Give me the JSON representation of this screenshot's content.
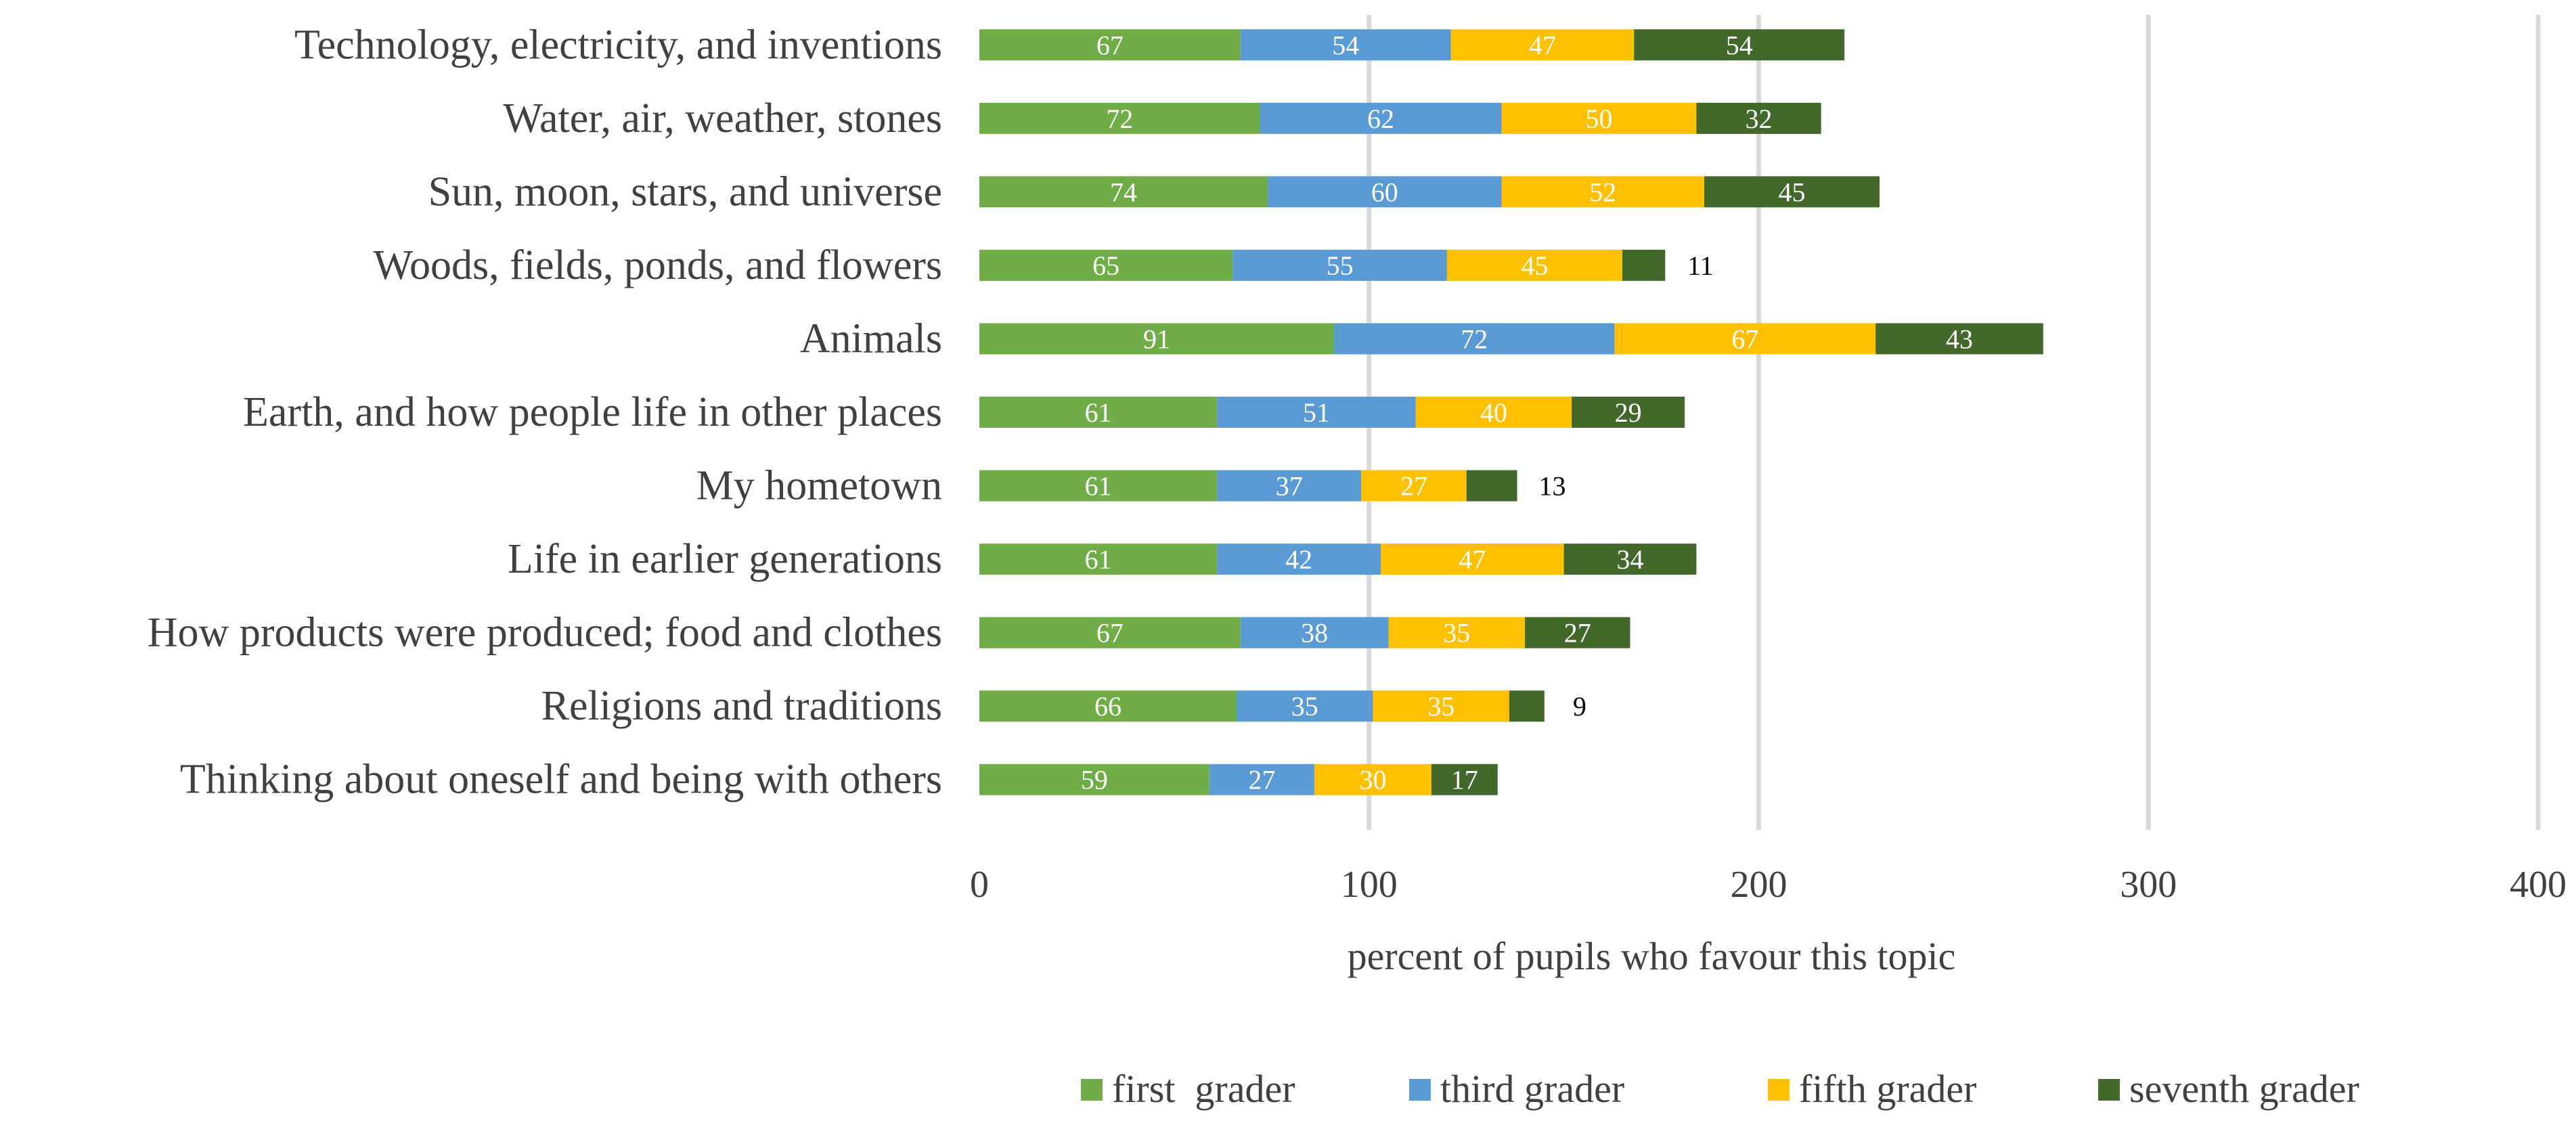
{
  "chart_data": {
    "type": "bar",
    "orientation": "horizontal",
    "stacked": true,
    "title": "",
    "xlabel": "percent of pupils who favour this topic",
    "ylabel": "",
    "xlim": [
      0,
      400
    ],
    "xticks": [
      0,
      100,
      200,
      300,
      400
    ],
    "grid": true,
    "legend_position": "bottom",
    "categories": [
      "Technology, electricity, and inventions",
      "Water, air, weather, stones",
      "Sun, moon, stars, and universe",
      "Woods, fields, ponds, and flowers",
      "Animals",
      "Earth, and how people life in other places",
      "My hometown",
      "Life in earlier generations",
      "How products were produced; food and clothes",
      "Religions and traditions",
      "Thinking about oneself and being  with others"
    ],
    "series": [
      {
        "name": "first  grader",
        "color": "#70ad47",
        "values": [
          67,
          72,
          74,
          65,
          91,
          61,
          61,
          61,
          67,
          66,
          59
        ]
      },
      {
        "name": "third grader",
        "color": "#5b9bd5",
        "values": [
          54,
          62,
          60,
          55,
          72,
          51,
          37,
          42,
          38,
          35,
          27
        ]
      },
      {
        "name": "fifth grader",
        "color": "#ffc000",
        "values": [
          47,
          50,
          52,
          45,
          67,
          40,
          27,
          47,
          35,
          35,
          30
        ]
      },
      {
        "name": "seventh grader",
        "color": "#43682b",
        "values": [
          54,
          32,
          45,
          11,
          43,
          29,
          13,
          34,
          27,
          9,
          17
        ]
      }
    ]
  }
}
